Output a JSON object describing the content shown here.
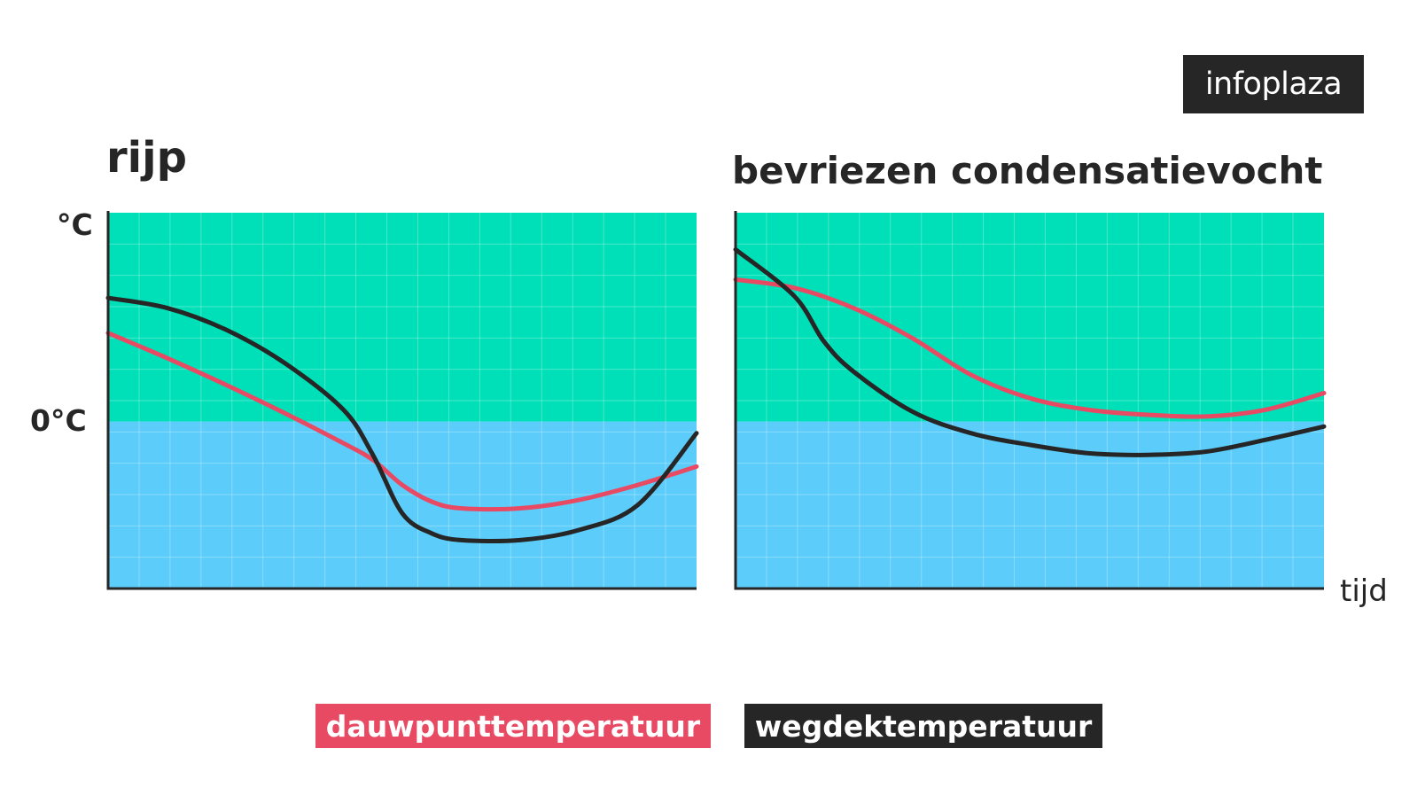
{
  "logo": {
    "text": "infoplaza"
  },
  "axis": {
    "unit_label": "°C",
    "zero_label": "0°C",
    "time_label": "tijd"
  },
  "colors": {
    "dew": "#e84a63",
    "road": "#262626",
    "above_zero": "#00e0b8",
    "below_zero": "#5ccdfb"
  },
  "legend": [
    {
      "label": "dauwpunttemperatuur",
      "color": "#e84a63"
    },
    {
      "label": "wegdektemperatuur",
      "color": "#262626"
    }
  ],
  "chart_data": [
    {
      "type": "line",
      "title": "rijp",
      "xlabel": "",
      "ylabel": "°C",
      "xlim": [
        0,
        1
      ],
      "ylim": [
        -1,
        1.25
      ],
      "grid": true,
      "legend_position": "bottom",
      "series": [
        {
          "name": "dauwpunttemperatuur",
          "color": "#e84a63",
          "x": [
            0,
            0.1,
            0.2,
            0.3,
            0.4,
            0.45,
            0.5,
            0.55,
            0.6,
            0.7,
            0.8,
            0.9,
            1.0
          ],
          "y": [
            0.53,
            0.38,
            0.22,
            0.05,
            -0.13,
            -0.23,
            -0.38,
            -0.48,
            -0.52,
            -0.52,
            -0.47,
            -0.38,
            -0.27
          ]
        },
        {
          "name": "wegdektemperatuur",
          "color": "#262626",
          "x": [
            0,
            0.1,
            0.2,
            0.3,
            0.4,
            0.45,
            0.5,
            0.55,
            0.6,
            0.7,
            0.8,
            0.9,
            1.0
          ],
          "y": [
            0.74,
            0.68,
            0.55,
            0.35,
            0.07,
            -0.2,
            -0.55,
            -0.67,
            -0.71,
            -0.71,
            -0.65,
            -0.5,
            -0.07
          ]
        }
      ]
    },
    {
      "type": "line",
      "title": "bevriezen condensatievocht",
      "xlabel": "tijd",
      "ylabel": "",
      "xlim": [
        0,
        1
      ],
      "ylim": [
        -1,
        1.25
      ],
      "grid": true,
      "legend_position": "bottom",
      "series": [
        {
          "name": "dauwpunttemperatuur",
          "color": "#e84a63",
          "x": [
            0,
            0.1,
            0.2,
            0.3,
            0.4,
            0.5,
            0.6,
            0.7,
            0.8,
            0.9,
            1.0
          ],
          "y": [
            0.85,
            0.8,
            0.68,
            0.5,
            0.28,
            0.14,
            0.07,
            0.04,
            0.03,
            0.07,
            0.17
          ]
        },
        {
          "name": "wegdektemperatuur",
          "color": "#262626",
          "x": [
            0,
            0.1,
            0.15,
            0.2,
            0.3,
            0.4,
            0.5,
            0.6,
            0.7,
            0.8,
            0.9,
            1.0
          ],
          "y": [
            1.03,
            0.75,
            0.48,
            0.3,
            0.06,
            -0.07,
            -0.14,
            -0.19,
            -0.2,
            -0.18,
            -0.11,
            -0.03
          ]
        }
      ]
    }
  ]
}
